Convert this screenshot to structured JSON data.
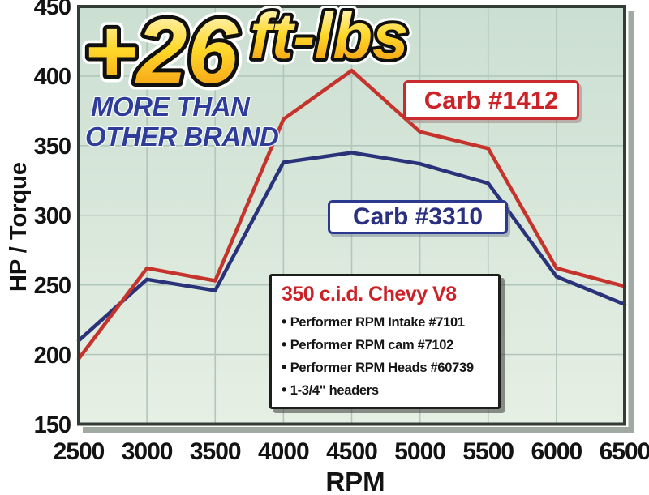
{
  "banner": {
    "gain_value": "+26",
    "gain_units": "ft-lbs",
    "subtitle_line1": "MORE THAN",
    "subtitle_line2": "OTHER BRAND",
    "subtitle_color": "#2e3d9a",
    "gold_gradient": {
      "top": "#fffbdf",
      "mid": "#ffd829",
      "bottom": "#f2930f"
    }
  },
  "series_labels": {
    "red": "Carb #1412",
    "blue": "Carb #3310"
  },
  "spec_box": {
    "title": "350 c.i.d. Chevy V8",
    "bullets": [
      "Performer RPM Intake #7101",
      "Performer RPM cam #7102",
      "Performer RPM Heads #60739",
      "1-3/4\" headers"
    ]
  },
  "chart_data": {
    "type": "line",
    "x": [
      2500,
      3000,
      3500,
      4000,
      4500,
      5000,
      5500,
      6000,
      6500
    ],
    "series": [
      {
        "name": "Carb #1412",
        "color": "#c5342c",
        "values": [
          197,
          262,
          253,
          369,
          404,
          360,
          348,
          262,
          249
        ]
      },
      {
        "name": "Carb #3310",
        "color": "#2a327a",
        "values": [
          210,
          254,
          246,
          338,
          345,
          337,
          323,
          256,
          236
        ]
      }
    ],
    "xlabel": "RPM",
    "ylabel": "HP / Torque",
    "xlim": [
      2500,
      6500
    ],
    "ylim": [
      150,
      450
    ],
    "xticks": [
      2500,
      3000,
      3500,
      4000,
      4500,
      5000,
      5500,
      6000,
      6500
    ],
    "yticks": [
      150,
      200,
      250,
      300,
      350,
      400,
      450
    ],
    "grid": true,
    "legend_position": "inline-labels",
    "plot_bg_top": "#cbdfd2",
    "plot_bg_bottom": "#e6efe3",
    "grid_color": "#b2c6bc",
    "frame_color": "#333d36",
    "frame_shadow": "#a0aaa2"
  }
}
